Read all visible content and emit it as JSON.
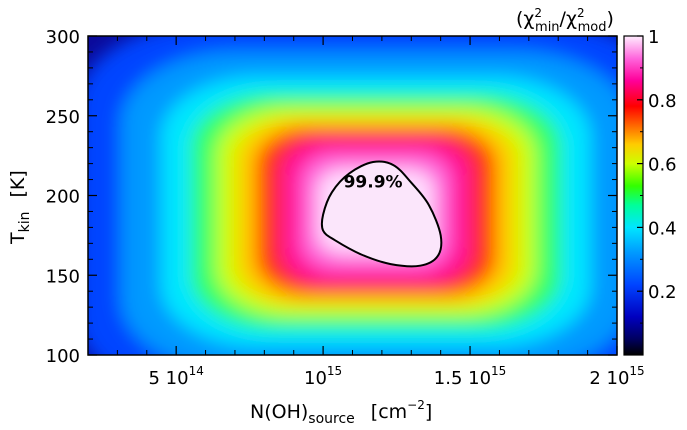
{
  "chart_data": {
    "type": "heatmap",
    "title": "",
    "colorbar_title": "(χ²min/χ²mod)",
    "colorbar_title_parts": {
      "open": "(χ",
      "sup1": "2",
      "sub1": "min",
      "slash": "/χ",
      "sup2": "2",
      "sub2": "mod",
      "close": ")"
    },
    "xlabel": "N(OH)source [cm−2]",
    "xlabel_parts": {
      "main": "N(OH)",
      "sub": "source",
      "unit_open": "[cm",
      "unit_sup": "−2",
      "unit_close": "]"
    },
    "ylabel": "Tkin [K]",
    "ylabel_parts": {
      "main": "T",
      "sub": "kin",
      "unit": "[K]"
    },
    "xlim": [
      200000000000000.0,
      2000000000000000.0
    ],
    "ylim": [
      100,
      300
    ],
    "x_ticks": [
      {
        "value": 500000000000000.0,
        "label": "5 10",
        "sup": "14"
      },
      {
        "value": 1000000000000000.0,
        "label": "10",
        "sup": "15"
      },
      {
        "value": 1500000000000000.0,
        "label": "1.5 10",
        "sup": "15"
      },
      {
        "value": 2000000000000000.0,
        "label": "2 10",
        "sup": "15"
      }
    ],
    "y_ticks": [
      {
        "value": 100,
        "label": "100"
      },
      {
        "value": 150,
        "label": "150"
      },
      {
        "value": 200,
        "label": "200"
      },
      {
        "value": 250,
        "label": "250"
      },
      {
        "value": 300,
        "label": "300"
      }
    ],
    "colorbar_ticks": [
      {
        "value": 0.2,
        "label": "0.2"
      },
      {
        "value": 0.4,
        "label": "0.4"
      },
      {
        "value": 0.6,
        "label": "0.6"
      },
      {
        "value": 0.8,
        "label": "0.8"
      },
      {
        "value": 1.0,
        "label": "1"
      }
    ],
    "colorbar_range": [
      0,
      1
    ],
    "peak": {
      "x": 1180000000000000.0,
      "y": 190,
      "value": 1.0
    },
    "contour": {
      "label": "99.9%",
      "points": [
        [
          1000000000000000.0,
          188
        ],
        [
          1030000000000000.0,
          202
        ],
        [
          1090000000000000.0,
          214
        ],
        [
          1170000000000000.0,
          221
        ],
        [
          1240000000000000.0,
          219
        ],
        [
          1300000000000000.0,
          208
        ],
        [
          1360000000000000.0,
          194
        ],
        [
          1400000000000000.0,
          175
        ],
        [
          1390000000000000.0,
          162
        ],
        [
          1330000000000000.0,
          156
        ],
        [
          1230000000000000.0,
          157
        ],
        [
          1130000000000000.0,
          163
        ],
        [
          1040000000000000.0,
          172
        ],
        [
          1000000000000000.0,
          178
        ]
      ]
    }
  }
}
